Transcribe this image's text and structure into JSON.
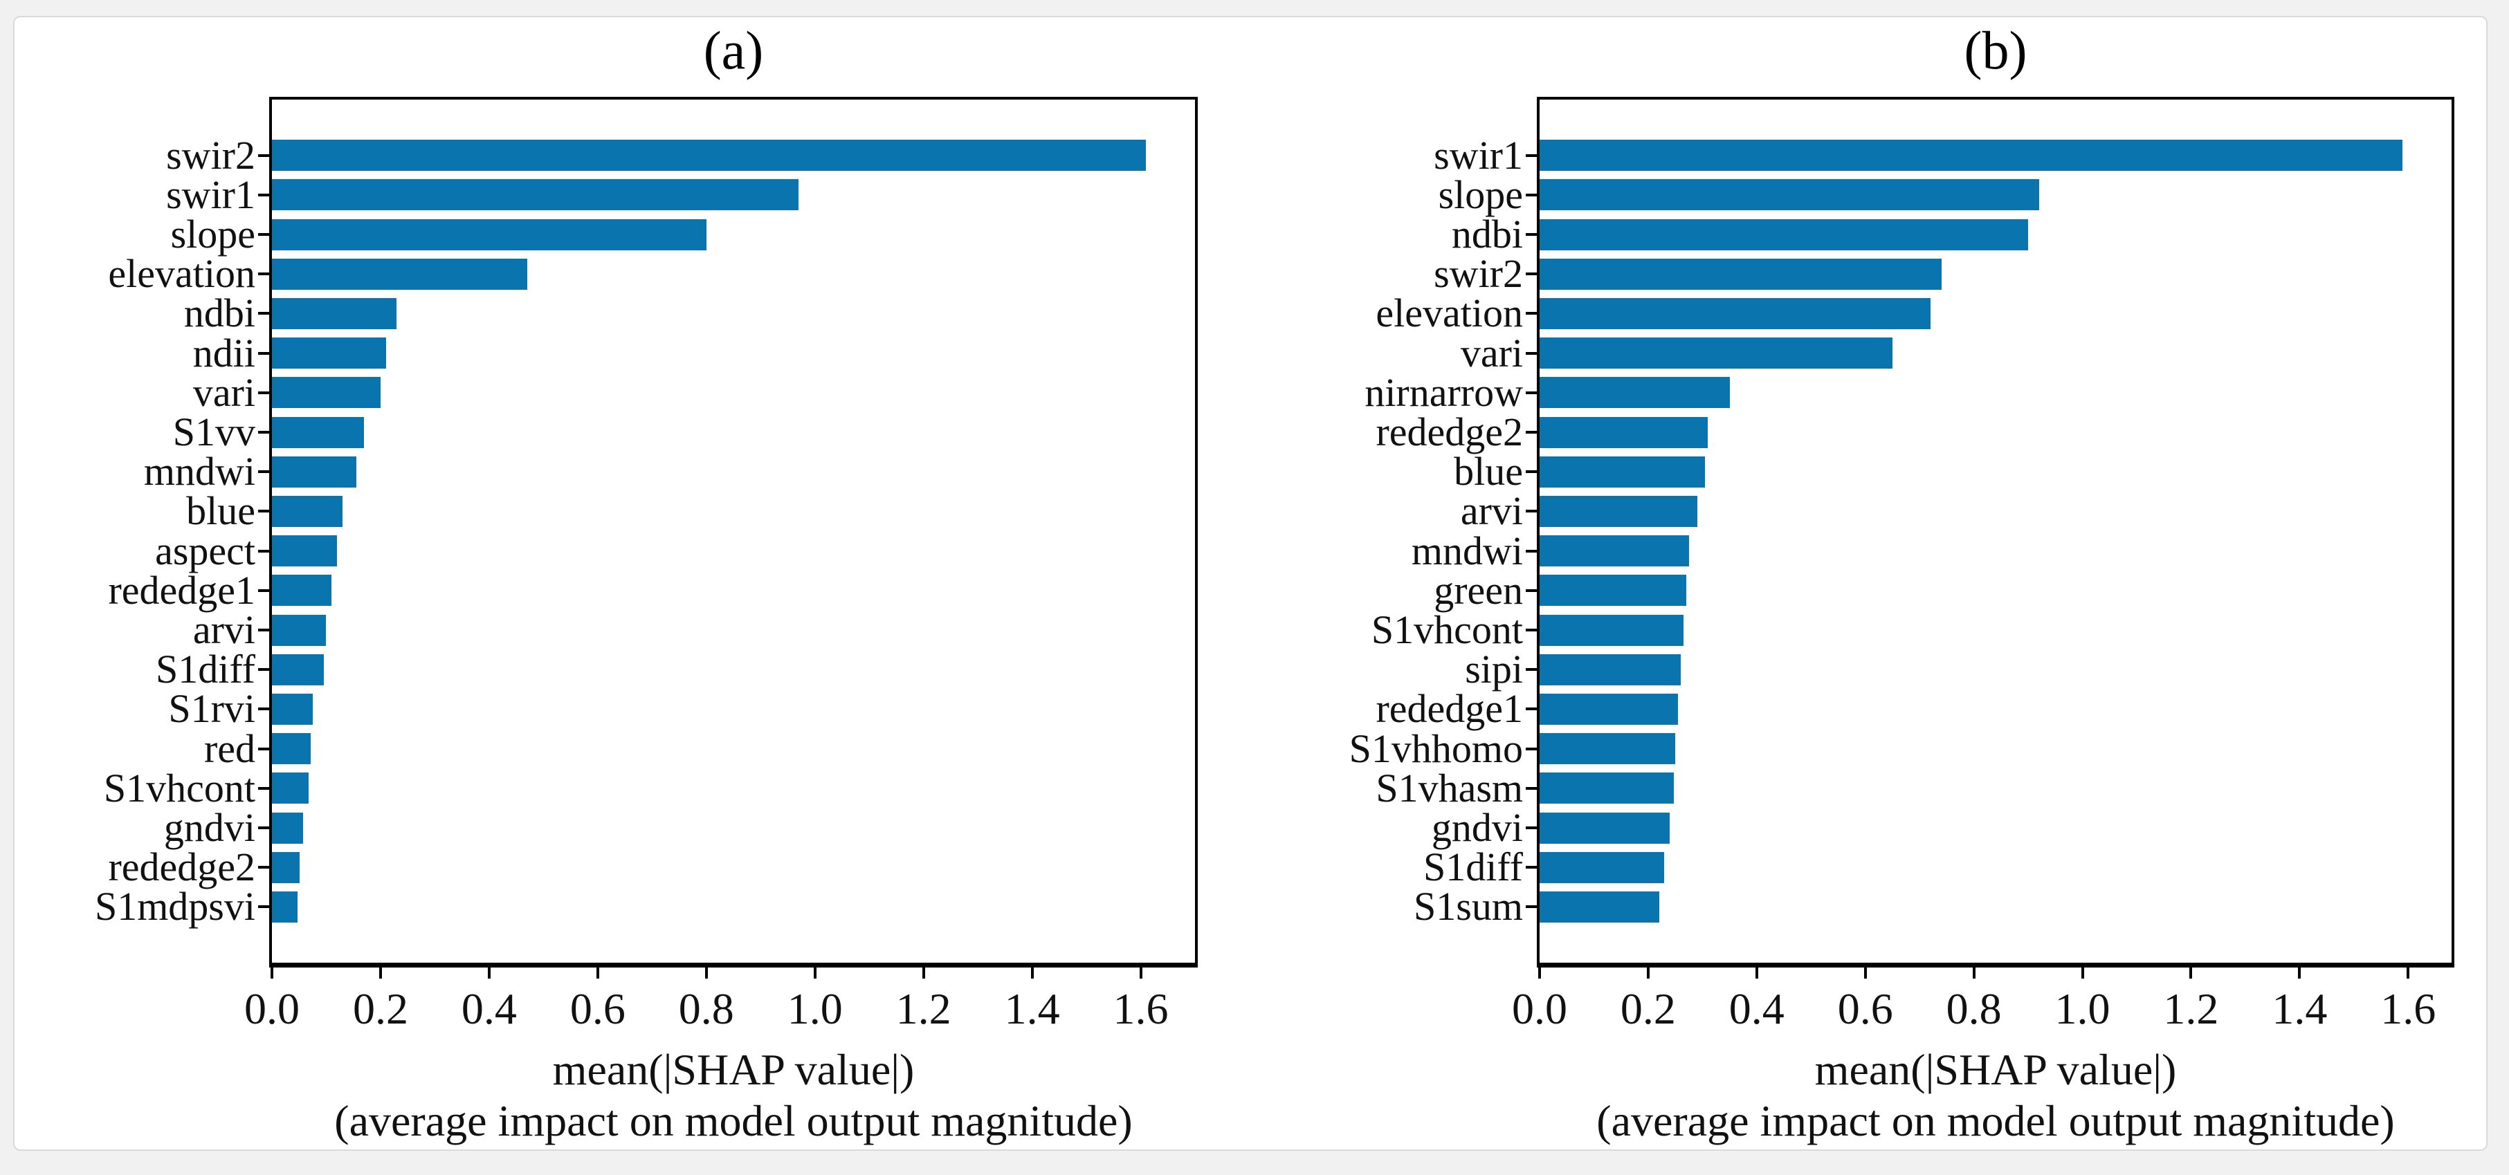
{
  "figure": {
    "description": "Two horizontal bar charts of SHAP feature importance",
    "panel_a_title": "(a)",
    "panel_b_title": "(b)"
  },
  "colors": {
    "bar": "#0a74ae",
    "axis": "#000000",
    "text": "#111111",
    "page_background": "#f1f1f1",
    "card_background": "#ffffff",
    "card_border": "#d9d9d9"
  },
  "chart_data": [
    {
      "type": "bar",
      "orientation": "horizontal",
      "title": "(a)",
      "categories": [
        "swir2",
        "swir1",
        "slope",
        "elevation",
        "ndbi",
        "ndii",
        "vari",
        "S1vv",
        "mndwi",
        "blue",
        "aspect",
        "rededge1",
        "arvi",
        "S1diff",
        "S1rvi",
        "red",
        "S1vhcont",
        "gndvi",
        "rededge2",
        "S1mdpsvi"
      ],
      "values": [
        1.61,
        0.97,
        0.8,
        0.47,
        0.23,
        0.21,
        0.2,
        0.17,
        0.155,
        0.13,
        0.12,
        0.11,
        0.1,
        0.095,
        0.075,
        0.071,
        0.067,
        0.057,
        0.051,
        0.047
      ],
      "xlabel_line1": "mean(|SHAP value|)",
      "xlabel_line2": "(average impact on model output magnitude)",
      "xticks": [
        "0.0",
        "0.2",
        "0.4",
        "0.6",
        "0.8",
        "1.0",
        "1.2",
        "1.4",
        "1.6"
      ],
      "xlim": [
        0,
        1.7
      ],
      "ylabel": "",
      "grid": false,
      "legend": "none"
    },
    {
      "type": "bar",
      "orientation": "horizontal",
      "title": "(b)",
      "categories": [
        "swir1",
        "slope",
        "ndbi",
        "swir2",
        "elevation",
        "vari",
        "nirnarrow",
        "rededge2",
        "blue",
        "arvi",
        "mndwi",
        "green",
        "S1vhcont",
        "sipi",
        "rededge1",
        "S1vhhomo",
        "S1vhasm",
        "gndvi",
        "S1diff",
        "S1sum"
      ],
      "values": [
        1.59,
        0.92,
        0.9,
        0.74,
        0.72,
        0.65,
        0.35,
        0.31,
        0.305,
        0.29,
        0.275,
        0.27,
        0.265,
        0.26,
        0.255,
        0.25,
        0.247,
        0.24,
        0.23,
        0.22
      ],
      "xlabel_line1": "mean(|SHAP value|)",
      "xlabel_line2": "(average impact on model output magnitude)",
      "xticks": [
        "0.0",
        "0.2",
        "0.4",
        "0.6",
        "0.8",
        "1.0",
        "1.2",
        "1.4",
        "1.6"
      ],
      "xlim": [
        0,
        1.68
      ],
      "ylabel": "",
      "grid": false,
      "legend": "none"
    }
  ]
}
